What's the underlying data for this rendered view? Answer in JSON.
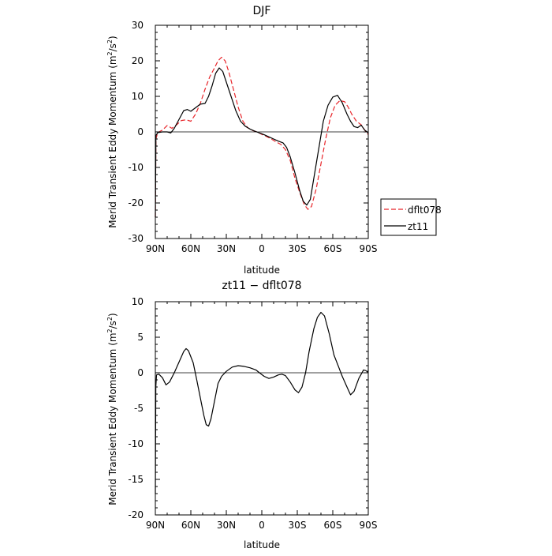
{
  "chart_data": [
    {
      "type": "line",
      "title": "DJF",
      "xlabel": "latitude",
      "ylabel_prefix": "Merid Transient Eddy Momentum (m",
      "ylabel_sup1": "2",
      "ylabel_mid": "/s",
      "ylabel_sup2": "2",
      "ylabel_suffix": ")",
      "xlim": [
        90,
        -90
      ],
      "ylim": [
        -30,
        30
      ],
      "x_ticks": [
        90,
        60,
        30,
        0,
        -30,
        -60,
        -90
      ],
      "x_tick_labels": [
        "90N",
        "60N",
        "30N",
        "0",
        "30S",
        "60S",
        "90S"
      ],
      "y_ticks": [
        -30,
        -20,
        -10,
        0,
        10,
        20,
        30
      ],
      "y_tick_labels": [
        "-30",
        "-20",
        "-10",
        "0",
        "10",
        "20",
        "30"
      ],
      "legend": {
        "placement": "right"
      },
      "series": [
        {
          "name": "dflt078",
          "color": "#e8262b",
          "dash": true,
          "points": [
            [
              90,
              -24
            ],
            [
              89.5,
              -2
            ],
            [
              88,
              -0.2
            ],
            [
              84,
              0.5
            ],
            [
              80,
              1.8
            ],
            [
              76,
              1
            ],
            [
              72,
              2
            ],
            [
              68,
              3.2
            ],
            [
              64,
              3.4
            ],
            [
              60,
              3
            ],
            [
              56,
              5
            ],
            [
              52,
              8
            ],
            [
              48,
              12
            ],
            [
              44,
              15.5
            ],
            [
              40,
              18
            ],
            [
              37,
              20
            ],
            [
              34,
              21
            ],
            [
              31,
              20
            ],
            [
              28,
              17
            ],
            [
              24,
              12
            ],
            [
              20,
              7
            ],
            [
              16,
              3
            ],
            [
              12,
              1.2
            ],
            [
              8,
              0.4
            ],
            [
              4,
              0
            ],
            [
              0,
              -0.7
            ],
            [
              -4,
              -1.3
            ],
            [
              -8,
              -2
            ],
            [
              -12,
              -2.8
            ],
            [
              -16,
              -3.5
            ],
            [
              -20,
              -5
            ],
            [
              -24,
              -8
            ],
            [
              -28,
              -13
            ],
            [
              -32,
              -17
            ],
            [
              -36,
              -20.5
            ],
            [
              -39,
              -21.8
            ],
            [
              -42,
              -21
            ],
            [
              -46,
              -16
            ],
            [
              -50,
              -9
            ],
            [
              -54,
              -2
            ],
            [
              -58,
              4
            ],
            [
              -62,
              7.5
            ],
            [
              -66,
              8.8
            ],
            [
              -70,
              8.5
            ],
            [
              -73,
              7
            ],
            [
              -76,
              5
            ],
            [
              -80,
              3
            ],
            [
              -84,
              2
            ],
            [
              -87,
              0.5
            ],
            [
              -89,
              -0.3
            ],
            [
              -90,
              -0.8
            ]
          ]
        },
        {
          "name": "zt11",
          "color": "#000000",
          "dash": false,
          "points": [
            [
              90,
              -24
            ],
            [
              89.5,
              -1
            ],
            [
              88,
              -0.2
            ],
            [
              84,
              0
            ],
            [
              80,
              0
            ],
            [
              77,
              -0.3
            ],
            [
              74,
              1
            ],
            [
              70,
              3.5
            ],
            [
              66,
              6
            ],
            [
              63,
              6.3
            ],
            [
              60,
              5.8
            ],
            [
              56,
              6.8
            ],
            [
              52,
              7.8
            ],
            [
              48,
              8
            ],
            [
              45,
              10
            ],
            [
              42,
              13
            ],
            [
              39,
              16.5
            ],
            [
              36,
              18
            ],
            [
              33,
              17
            ],
            [
              30,
              14
            ],
            [
              26,
              10
            ],
            [
              22,
              6
            ],
            [
              18,
              3
            ],
            [
              14,
              1.6
            ],
            [
              10,
              0.8
            ],
            [
              6,
              0.2
            ],
            [
              2,
              -0.3
            ],
            [
              -2,
              -0.8
            ],
            [
              -6,
              -1.4
            ],
            [
              -10,
              -2
            ],
            [
              -14,
              -2.6
            ],
            [
              -18,
              -3.1
            ],
            [
              -21,
              -4.4
            ],
            [
              -24,
              -7
            ],
            [
              -28,
              -11.5
            ],
            [
              -32,
              -16.5
            ],
            [
              -35,
              -19.5
            ],
            [
              -38,
              -20.6
            ],
            [
              -41,
              -19
            ],
            [
              -44,
              -13
            ],
            [
              -48,
              -5
            ],
            [
              -52,
              3
            ],
            [
              -56,
              7.5
            ],
            [
              -60,
              9.8
            ],
            [
              -64,
              10.3
            ],
            [
              -68,
              8.2
            ],
            [
              -72,
              5
            ],
            [
              -75,
              3
            ],
            [
              -78,
              1.5
            ],
            [
              -81,
              1.2
            ],
            [
              -84,
              1.9
            ],
            [
              -87,
              0.5
            ],
            [
              -89,
              0
            ],
            [
              -90,
              -0.4
            ]
          ]
        }
      ]
    },
    {
      "type": "line",
      "title": "zt11 − dflt078",
      "xlabel": "latitude",
      "ylabel_prefix": "Merid Transient Eddy Momentum (m",
      "ylabel_sup1": "2",
      "ylabel_mid": "/s",
      "ylabel_sup2": "2",
      "ylabel_suffix": ")",
      "xlim": [
        90,
        -90
      ],
      "ylim": [
        -20,
        10
      ],
      "x_ticks": [
        90,
        60,
        30,
        0,
        -30,
        -60,
        -90
      ],
      "x_tick_labels": [
        "90N",
        "60N",
        "30N",
        "0",
        "30S",
        "60S",
        "90S"
      ],
      "y_ticks": [
        -20,
        -15,
        -10,
        -5,
        0,
        5,
        10
      ],
      "y_tick_labels": [
        "-20",
        "-15",
        "-10",
        "-5",
        "0",
        "5",
        "10"
      ],
      "series": [
        {
          "name": "",
          "color": "#000000",
          "dash": false,
          "points": [
            [
              90,
              -17
            ],
            [
              89.6,
              -2
            ],
            [
              89,
              -0.3
            ],
            [
              87,
              -0.2
            ],
            [
              84,
              -0.7
            ],
            [
              81,
              -1.7
            ],
            [
              78,
              -1.3
            ],
            [
              74,
              0
            ],
            [
              70,
              1.5
            ],
            [
              66,
              3
            ],
            [
              64,
              3.4
            ],
            [
              62,
              3.1
            ],
            [
              58,
              1.4
            ],
            [
              55,
              -1
            ],
            [
              52,
              -3.5
            ],
            [
              49,
              -6
            ],
            [
              47,
              -7.3
            ],
            [
              45,
              -7.5
            ],
            [
              43,
              -6.5
            ],
            [
              40,
              -4
            ],
            [
              37,
              -1.5
            ],
            [
              34,
              -0.5
            ],
            [
              30,
              0.2
            ],
            [
              25,
              0.8
            ],
            [
              20,
              1
            ],
            [
              15,
              0.9
            ],
            [
              10,
              0.7
            ],
            [
              5,
              0.4
            ],
            [
              2,
              0
            ],
            [
              -2,
              -0.5
            ],
            [
              -6,
              -0.8
            ],
            [
              -10,
              -0.6
            ],
            [
              -14,
              -0.3
            ],
            [
              -17,
              -0.2
            ],
            [
              -20,
              -0.4
            ],
            [
              -24,
              -1.3
            ],
            [
              -28,
              -2.4
            ],
            [
              -31,
              -2.8
            ],
            [
              -34,
              -2
            ],
            [
              -37,
              0
            ],
            [
              -40,
              3
            ],
            [
              -44,
              6.2
            ],
            [
              -47,
              7.8
            ],
            [
              -50,
              8.5
            ],
            [
              -53,
              8
            ],
            [
              -57,
              5.5
            ],
            [
              -61,
              2.5
            ],
            [
              -65,
              0.8
            ],
            [
              -68,
              -0.5
            ],
            [
              -72,
              -2
            ],
            [
              -75,
              -3.1
            ],
            [
              -78,
              -2.6
            ],
            [
              -82,
              -0.8
            ],
            [
              -86,
              0.4
            ],
            [
              -88,
              0.3
            ],
            [
              -89.5,
              0.1
            ],
            [
              -90,
              0.4
            ]
          ]
        }
      ]
    }
  ],
  "legend_labels": [
    "dflt078",
    "zt11"
  ]
}
